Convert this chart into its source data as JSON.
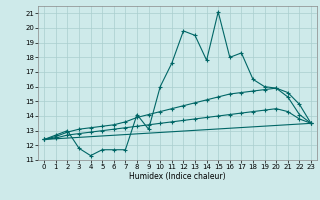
{
  "xlabel": "Humidex (Indice chaleur)",
  "bg_color": "#ceeaea",
  "grid_color": "#aacece",
  "line_color": "#006666",
  "xlim": [
    -0.5,
    23.5
  ],
  "ylim": [
    11,
    21.5
  ],
  "yticks": [
    11,
    12,
    13,
    14,
    15,
    16,
    17,
    18,
    19,
    20,
    21
  ],
  "xticks": [
    0,
    1,
    2,
    3,
    4,
    5,
    6,
    7,
    8,
    9,
    10,
    11,
    12,
    13,
    14,
    15,
    16,
    17,
    18,
    19,
    20,
    21,
    22,
    23
  ],
  "line1_x": [
    0,
    1,
    2,
    3,
    4,
    5,
    6,
    7,
    8,
    9,
    10,
    11,
    12,
    13,
    14,
    15,
    16,
    17,
    18,
    19,
    20,
    21,
    22,
    23
  ],
  "line1_y": [
    12.4,
    12.7,
    13.0,
    11.8,
    11.3,
    11.7,
    11.7,
    11.7,
    14.1,
    13.1,
    16.0,
    17.6,
    19.8,
    19.5,
    17.8,
    21.1,
    18.0,
    18.3,
    16.5,
    16.0,
    15.9,
    15.3,
    14.1,
    13.5
  ],
  "line2_x": [
    0,
    1,
    2,
    3,
    4,
    5,
    6,
    7,
    8,
    9,
    10,
    11,
    12,
    13,
    14,
    15,
    16,
    17,
    18,
    19,
    20,
    21,
    22,
    23
  ],
  "line2_y": [
    12.4,
    12.6,
    12.9,
    13.1,
    13.2,
    13.3,
    13.4,
    13.6,
    13.9,
    14.1,
    14.3,
    14.5,
    14.7,
    14.9,
    15.1,
    15.3,
    15.5,
    15.6,
    15.7,
    15.8,
    15.9,
    15.6,
    14.8,
    13.5
  ],
  "line3_x": [
    0,
    1,
    2,
    3,
    4,
    5,
    6,
    7,
    8,
    9,
    10,
    11,
    12,
    13,
    14,
    15,
    16,
    17,
    18,
    19,
    20,
    21,
    22,
    23
  ],
  "line3_y": [
    12.4,
    12.5,
    12.7,
    12.8,
    12.9,
    13.0,
    13.1,
    13.2,
    13.3,
    13.4,
    13.5,
    13.6,
    13.7,
    13.8,
    13.9,
    14.0,
    14.1,
    14.2,
    14.3,
    14.4,
    14.5,
    14.3,
    13.8,
    13.5
  ],
  "line4_x": [
    0,
    23
  ],
  "line4_y": [
    12.4,
    13.5
  ]
}
